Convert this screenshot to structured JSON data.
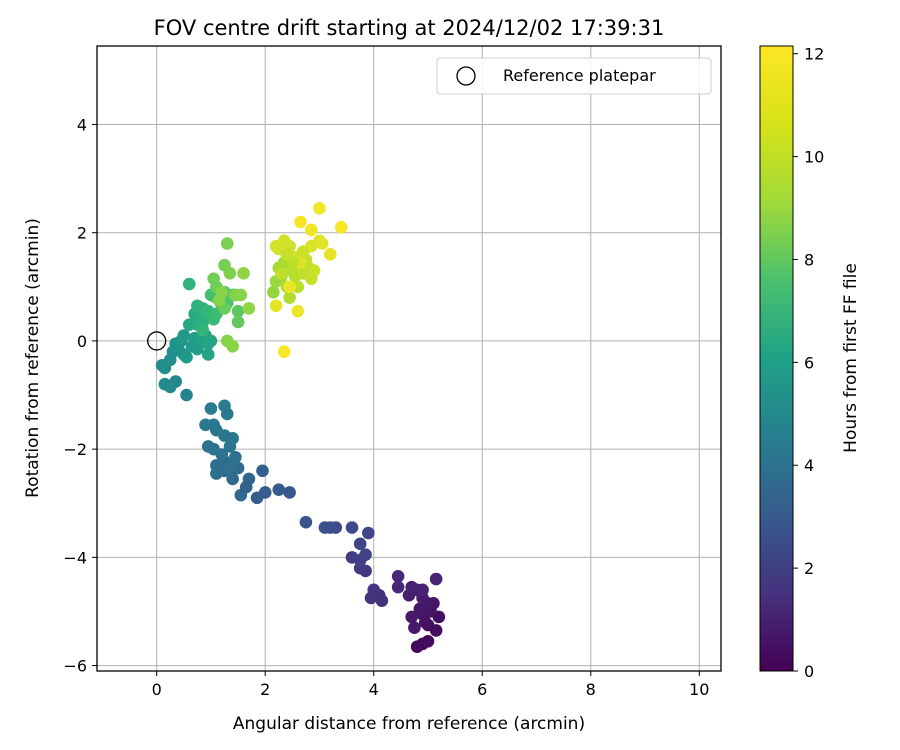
{
  "chart_data": {
    "type": "scatter",
    "title": "FOV centre drift starting at 2024/12/02 17:39:31",
    "xlabel": "Angular distance from reference (arcmin)",
    "ylabel": "Rotation from reference (arcmin)",
    "xlim": [
      -1.1,
      10.4
    ],
    "ylim": [
      -6.1,
      5.45
    ],
    "xticks": [
      0,
      2,
      4,
      6,
      8,
      10
    ],
    "yticks": [
      -6,
      -4,
      -2,
      0,
      2,
      4
    ],
    "grid": true,
    "legend": {
      "placement": "top-right",
      "entries": [
        "Reference platepar"
      ]
    },
    "reference_point": {
      "x": 0,
      "y": 0,
      "name": "Reference platepar"
    },
    "colorbar": {
      "label": "Hours from first FF file",
      "range": [
        0,
        12.15
      ],
      "ticks": [
        0,
        2,
        4,
        6,
        8,
        10,
        12
      ],
      "colormap": "viridis"
    },
    "points": [
      [
        4.8,
        -5.65,
        0.2
      ],
      [
        4.9,
        -5.6,
        0.3
      ],
      [
        5.0,
        -5.55,
        0.35
      ],
      [
        5.15,
        -5.35,
        0.4
      ],
      [
        5.0,
        -5.25,
        0.45
      ],
      [
        5.2,
        -5.1,
        0.5
      ],
      [
        4.95,
        -5.2,
        0.55
      ],
      [
        5.05,
        -5.0,
        0.6
      ],
      [
        4.9,
        -5.05,
        0.65
      ],
      [
        5.1,
        -4.85,
        0.7
      ],
      [
        4.85,
        -4.95,
        0.75
      ],
      [
        5.0,
        -4.85,
        0.8
      ],
      [
        4.7,
        -5.1,
        0.85
      ],
      [
        4.75,
        -5.3,
        0.9
      ],
      [
        4.9,
        -4.75,
        0.95
      ],
      [
        4.8,
        -4.6,
        1.0
      ],
      [
        4.65,
        -4.7,
        1.05
      ],
      [
        4.7,
        -4.55,
        1.1
      ],
      [
        4.9,
        -4.6,
        1.15
      ],
      [
        5.15,
        -4.4,
        1.2
      ],
      [
        4.45,
        -4.55,
        1.3
      ],
      [
        4.45,
        -4.35,
        1.4
      ],
      [
        4.1,
        -4.7,
        1.6
      ],
      [
        4.15,
        -4.8,
        1.7
      ],
      [
        3.95,
        -4.75,
        1.8
      ],
      [
        4.0,
        -4.6,
        1.9
      ],
      [
        3.85,
        -4.25,
        2.0
      ],
      [
        3.75,
        -4.2,
        2.1
      ],
      [
        3.6,
        -4.0,
        2.2
      ],
      [
        3.75,
        -4.05,
        2.3
      ],
      [
        3.85,
        -3.95,
        2.4
      ],
      [
        3.75,
        -3.75,
        2.5
      ],
      [
        3.9,
        -3.55,
        2.6
      ],
      [
        3.6,
        -3.45,
        2.7
      ],
      [
        3.3,
        -3.45,
        2.8
      ],
      [
        3.2,
        -3.45,
        2.9
      ],
      [
        3.1,
        -3.45,
        3.0
      ],
      [
        2.75,
        -3.35,
        3.2
      ],
      [
        2.45,
        -2.8,
        3.3
      ],
      [
        2.25,
        -2.75,
        3.4
      ],
      [
        2.0,
        -2.8,
        3.5
      ],
      [
        1.85,
        -2.9,
        3.6
      ],
      [
        1.95,
        -2.4,
        3.7
      ],
      [
        1.65,
        -2.7,
        3.8
      ],
      [
        1.7,
        -2.55,
        3.9
      ],
      [
        1.55,
        -2.85,
        4.0
      ],
      [
        1.5,
        -2.35,
        4.1
      ],
      [
        1.4,
        -2.55,
        4.15
      ],
      [
        1.3,
        -2.25,
        4.2
      ],
      [
        1.25,
        -2.4,
        4.3
      ],
      [
        1.1,
        -2.3,
        4.35
      ],
      [
        1.1,
        -2.45,
        4.4
      ],
      [
        1.35,
        -2.35,
        4.45
      ],
      [
        1.45,
        -2.15,
        4.5
      ],
      [
        1.2,
        -2.1,
        4.55
      ],
      [
        1.05,
        -2.0,
        4.6
      ],
      [
        0.95,
        -1.95,
        4.65
      ],
      [
        1.35,
        -1.95,
        4.7
      ],
      [
        1.4,
        -1.8,
        4.75
      ],
      [
        1.25,
        -1.75,
        4.8
      ],
      [
        1.1,
        -1.65,
        4.85
      ],
      [
        1.05,
        -1.55,
        4.9
      ],
      [
        0.9,
        -1.55,
        4.95
      ],
      [
        1.3,
        -1.35,
        5.0
      ],
      [
        1.25,
        -1.2,
        5.05
      ],
      [
        1.0,
        -1.25,
        5.1
      ],
      [
        0.55,
        -1.0,
        5.5
      ],
      [
        0.35,
        -0.75,
        5.7
      ],
      [
        0.15,
        -0.8,
        5.8
      ],
      [
        0.25,
        -0.85,
        5.85
      ],
      [
        0.1,
        -0.45,
        5.9
      ],
      [
        0.15,
        -0.5,
        5.95
      ],
      [
        0.25,
        -0.35,
        6.0
      ],
      [
        0.3,
        -0.2,
        6.05
      ],
      [
        0.4,
        -0.15,
        6.1
      ],
      [
        0.35,
        -0.05,
        6.2
      ],
      [
        0.5,
        -0.25,
        6.3
      ],
      [
        0.45,
        0.0,
        6.4
      ],
      [
        0.5,
        0.1,
        6.5
      ],
      [
        0.55,
        -0.3,
        6.55
      ],
      [
        0.65,
        -0.1,
        6.6
      ],
      [
        0.75,
        -0.15,
        6.7
      ],
      [
        0.7,
        0.05,
        6.8
      ],
      [
        0.85,
        0.05,
        6.9
      ],
      [
        0.9,
        0.1,
        7.0
      ],
      [
        0.95,
        -0.25,
        7.05
      ],
      [
        0.95,
        -0.05,
        7.1
      ],
      [
        1.0,
        0.0,
        7.15
      ],
      [
        0.6,
        0.3,
        7.3
      ],
      [
        0.7,
        0.5,
        7.4
      ],
      [
        0.75,
        0.3,
        7.5
      ],
      [
        0.85,
        0.35,
        7.6
      ],
      [
        0.9,
        0.45,
        7.7
      ],
      [
        0.85,
        0.6,
        7.8
      ],
      [
        0.75,
        0.65,
        7.85
      ],
      [
        0.6,
        1.05,
        7.9
      ],
      [
        0.85,
        0.2,
        8.0
      ],
      [
        0.95,
        0.55,
        8.1
      ],
      [
        1.05,
        0.4,
        8.2
      ],
      [
        1.1,
        0.5,
        8.3
      ],
      [
        1.1,
        0.8,
        8.4
      ],
      [
        1.0,
        0.85,
        8.5
      ],
      [
        1.2,
        0.65,
        8.6
      ],
      [
        1.3,
        0.7,
        8.7
      ],
      [
        1.25,
        0.9,
        8.8
      ],
      [
        1.4,
        0.85,
        8.9
      ],
      [
        1.45,
        0.85,
        9.0
      ],
      [
        1.5,
        0.55,
        9.1
      ],
      [
        1.5,
        0.35,
        9.2
      ],
      [
        1.25,
        0.6,
        9.3
      ],
      [
        1.1,
        1.0,
        9.4
      ],
      [
        1.05,
        1.15,
        9.5
      ],
      [
        1.25,
        1.4,
        9.6
      ],
      [
        1.3,
        1.8,
        9.7
      ],
      [
        1.35,
        1.25,
        9.8
      ],
      [
        1.45,
        0.85,
        9.85
      ],
      [
        1.3,
        0.0,
        9.9
      ],
      [
        1.4,
        -0.1,
        9.95
      ],
      [
        1.55,
        0.85,
        10.0
      ],
      [
        1.7,
        0.6,
        10.05
      ],
      [
        1.6,
        1.25,
        10.1
      ],
      [
        1.15,
        0.75,
        9.9
      ],
      [
        1.2,
        0.9,
        9.95
      ],
      [
        2.15,
        0.9,
        10.2
      ],
      [
        2.2,
        1.1,
        10.3
      ],
      [
        2.3,
        1.2,
        10.4
      ],
      [
        2.25,
        1.35,
        10.5
      ],
      [
        2.35,
        1.45,
        10.6
      ],
      [
        2.4,
        1.0,
        10.7
      ],
      [
        2.45,
        0.8,
        10.75
      ],
      [
        2.5,
        1.3,
        10.8
      ],
      [
        2.55,
        1.2,
        10.85
      ],
      [
        2.6,
        1.0,
        10.9
      ],
      [
        2.6,
        1.55,
        10.95
      ],
      [
        2.7,
        1.25,
        11.0
      ],
      [
        2.75,
        1.5,
        11.05
      ],
      [
        2.8,
        1.35,
        11.1
      ],
      [
        2.85,
        1.15,
        11.15
      ],
      [
        2.9,
        1.3,
        11.2
      ],
      [
        2.45,
        1.75,
        11.25
      ],
      [
        2.35,
        1.85,
        11.3
      ],
      [
        2.25,
        1.7,
        11.35
      ],
      [
        2.2,
        1.75,
        11.4
      ],
      [
        2.55,
        1.55,
        11.45
      ],
      [
        2.65,
        1.45,
        11.5
      ],
      [
        2.85,
        1.75,
        11.55
      ],
      [
        3.0,
        1.85,
        11.6
      ],
      [
        3.05,
        1.8,
        11.65
      ],
      [
        3.2,
        1.6,
        11.7
      ],
      [
        2.2,
        0.65,
        11.75
      ],
      [
        2.45,
        1.0,
        11.8
      ],
      [
        2.6,
        0.55,
        11.85
      ],
      [
        2.85,
        2.05,
        11.9
      ],
      [
        3.0,
        2.45,
        11.95
      ],
      [
        3.4,
        2.1,
        12.0
      ],
      [
        2.65,
        2.2,
        12.05
      ],
      [
        2.35,
        -0.2,
        12.1
      ],
      [
        2.3,
        1.25,
        11.0
      ],
      [
        2.5,
        1.45,
        10.9
      ],
      [
        2.4,
        1.6,
        11.1
      ],
      [
        2.7,
        1.65,
        11.2
      ]
    ]
  }
}
